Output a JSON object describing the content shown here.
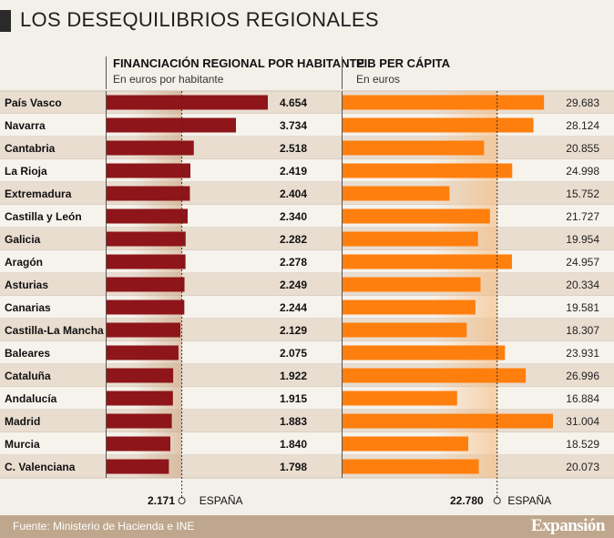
{
  "title": "LOS DESEQUILIBRIOS REGIONALES",
  "footer": {
    "source": "Fuente: Ministerio de Hacienda e INE",
    "brand": "Expansión"
  },
  "colors": {
    "left_bar": "#8e1519",
    "right_bar": "#ff7f0e",
    "row_alt": "#e9ddd0",
    "row_plain": "#f6f2ec",
    "footer": "#bfa78e"
  },
  "chart_data": [
    {
      "type": "bar",
      "orientation": "horizontal",
      "title": "FINANCIACIÓN REGIONAL POR HABITANTE",
      "subtitle": "En euros por habitante",
      "categories": [
        "País Vasco",
        "Navarra",
        "Cantabria",
        "La Rioja",
        "Extremadura",
        "Castilla y León",
        "Galicia",
        "Aragón",
        "Asturias",
        "Canarias",
        "Castilla-La Mancha",
        "Baleares",
        "Cataluña",
        "Andalucía",
        "Madrid",
        "Murcia",
        "C. Valenciana"
      ],
      "values": [
        4654,
        3734,
        2518,
        2419,
        2404,
        2340,
        2282,
        2278,
        2249,
        2244,
        2129,
        2075,
        1922,
        1915,
        1883,
        1840,
        1798
      ],
      "value_labels": [
        "4.654",
        "3.734",
        "2.518",
        "2.419",
        "2.404",
        "2.340",
        "2.282",
        "2.278",
        "2.249",
        "2.244",
        "2.129",
        "2.075",
        "1.922",
        "1.915",
        "1.883",
        "1.840",
        "1.798"
      ],
      "reference": {
        "value": 2171,
        "label": "2.171",
        "name": "ESPAÑA"
      },
      "xlim": [
        0,
        5000
      ]
    },
    {
      "type": "bar",
      "orientation": "horizontal",
      "title": "PIB PER CÁPITA",
      "subtitle": "En euros",
      "categories": [
        "País Vasco",
        "Navarra",
        "Cantabria",
        "La Rioja",
        "Extremadura",
        "Castilla y León",
        "Galicia",
        "Aragón",
        "Asturias",
        "Canarias",
        "Castilla-La Mancha",
        "Baleares",
        "Cataluña",
        "Andalucía",
        "Madrid",
        "Murcia",
        "C. Valenciana"
      ],
      "values": [
        29683,
        28124,
        20855,
        24998,
        15752,
        21727,
        19954,
        24957,
        20334,
        19581,
        18307,
        23931,
        26996,
        16884,
        31004,
        18529,
        20073
      ],
      "value_labels": [
        "29.683",
        "28.124",
        "20.855",
        "24.998",
        "15.752",
        "21.727",
        "19.954",
        "24.957",
        "20.334",
        "19.581",
        "18.307",
        "23.931",
        "26.996",
        "16.884",
        "31.004",
        "18.529",
        "20.073"
      ],
      "reference": {
        "value": 22780,
        "label": "22.780",
        "name": "ESPAÑA"
      },
      "xlim": [
        0,
        31500
      ]
    }
  ]
}
